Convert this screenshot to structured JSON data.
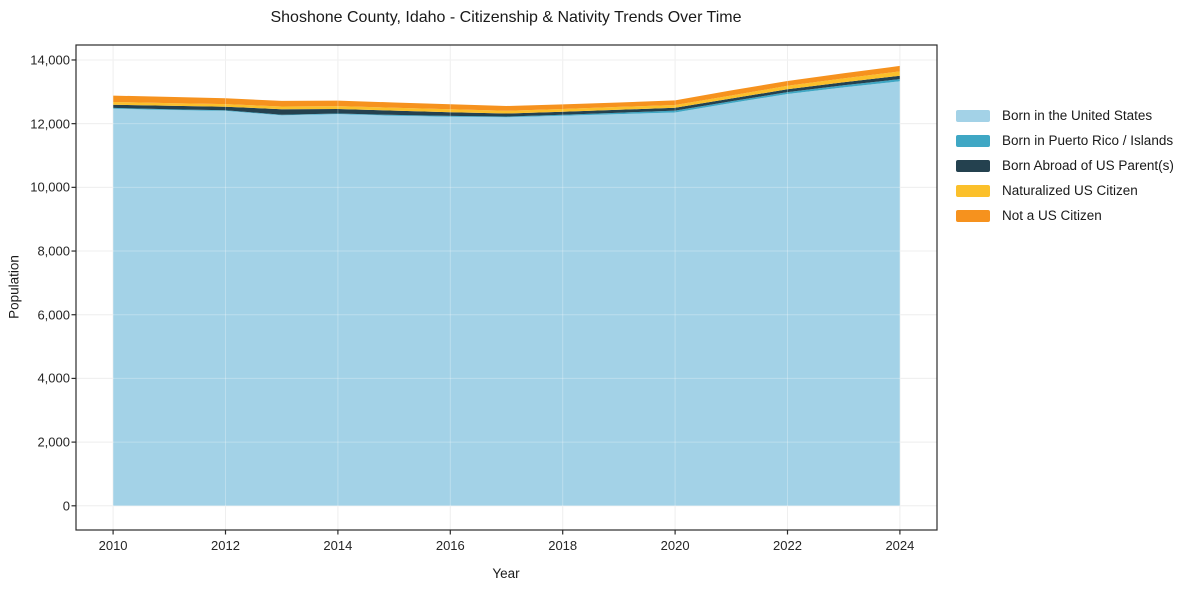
{
  "figure": {
    "background": "#ffffff"
  },
  "chart_data": {
    "type": "area",
    "stacked": true,
    "title": "Shoshone County, Idaho - Citizenship & Nativity Trends Over Time",
    "xlabel": "Year",
    "ylabel": "Population",
    "x": [
      2010,
      2011,
      2012,
      2013,
      2014,
      2015,
      2016,
      2017,
      2018,
      2019,
      2020,
      2021,
      2022,
      2023,
      2024
    ],
    "series": [
      {
        "name": "Born in the United States",
        "color": "#A3D2E7",
        "values": [
          12470,
          12430,
          12400,
          12260,
          12300,
          12250,
          12220,
          12200,
          12250,
          12300,
          12350,
          12650,
          12930,
          13140,
          13330
        ]
      },
      {
        "name": "Born in Puerto Rico / Islands",
        "color": "#3FA7C4",
        "values": [
          25,
          25,
          20,
          20,
          20,
          25,
          25,
          25,
          30,
          45,
          60,
          55,
          60,
          65,
          70
        ]
      },
      {
        "name": "Born Abroad of US Parent(s)",
        "color": "#24414F",
        "values": [
          100,
          105,
          110,
          175,
          140,
          135,
          115,
          95,
          95,
          90,
          90,
          85,
          90,
          95,
          105
        ]
      },
      {
        "name": "Naturalized US Citizen",
        "color": "#FBC02B",
        "values": [
          85,
          85,
          85,
          85,
          90,
          90,
          90,
          85,
          85,
          90,
          85,
          95,
          110,
          120,
          135
        ]
      },
      {
        "name": "Not a US Citizen",
        "color": "#F6921E",
        "values": [
          200,
          195,
          185,
          175,
          175,
          165,
          160,
          150,
          145,
          140,
          145,
          160,
          150,
          160,
          175
        ]
      }
    ],
    "x_ticks": [
      2010,
      2012,
      2014,
      2016,
      2018,
      2020,
      2022,
      2024
    ],
    "x_tick_labels": [
      "2010",
      "2012",
      "2014",
      "2016",
      "2018",
      "2020",
      "2022",
      "2024"
    ],
    "y_ticks": [
      0,
      2000,
      4000,
      6000,
      8000,
      10000,
      12000,
      14000
    ],
    "y_tick_labels": [
      "0",
      "2,000",
      "4,000",
      "6,000",
      "8,000",
      "10,000",
      "12,000",
      "14,000"
    ],
    "xlim": [
      2009.34,
      2024.66
    ],
    "ylim": [
      -760,
      14470
    ],
    "grid": true,
    "legend_position": "right"
  },
  "colors": {
    "axis": "#2b2b2b",
    "grid_under": "#e9e9e9",
    "grid_over": "rgba(255,255,255,0.28)",
    "tick_text": "#262626"
  }
}
